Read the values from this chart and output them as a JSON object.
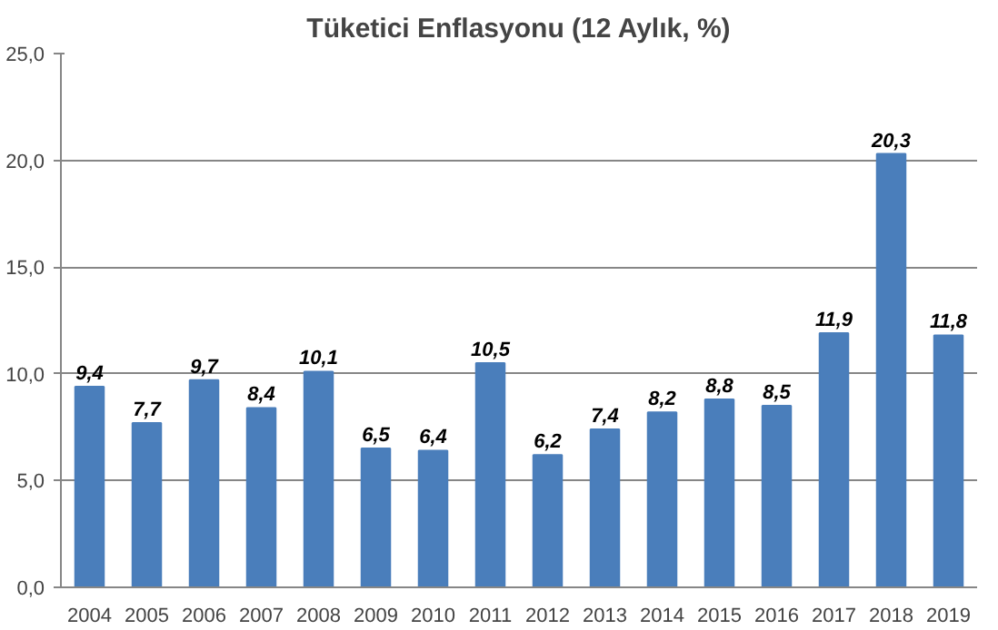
{
  "chart_data": {
    "type": "bar",
    "title": "Tüketici Enflasyonu (12 Aylık, %)",
    "categories": [
      "2004",
      "2005",
      "2006",
      "2007",
      "2008",
      "2009",
      "2010",
      "2011",
      "2012",
      "2013",
      "2014",
      "2015",
      "2016",
      "2017",
      "2018",
      "2019"
    ],
    "values": [
      9.4,
      7.7,
      9.7,
      8.4,
      10.1,
      6.5,
      6.4,
      10.5,
      6.2,
      7.4,
      8.2,
      8.8,
      8.5,
      11.9,
      20.3,
      11.8
    ],
    "value_labels": [
      "9,4",
      "7,7",
      "9,7",
      "8,4",
      "10,1",
      "6,5",
      "6,4",
      "10,5",
      "6,2",
      "7,4",
      "8,2",
      "8,8",
      "8,5",
      "11,9",
      "20,3",
      "11,8"
    ],
    "color": "#4a7ebb",
    "ylim": [
      0,
      25
    ],
    "yticks": [
      {
        "value": 0,
        "label": "0,0"
      },
      {
        "value": 5,
        "label": "5,0"
      },
      {
        "value": 10,
        "label": "10,0"
      },
      {
        "value": 15,
        "label": "15,0"
      },
      {
        "value": 20,
        "label": "20,0"
      },
      {
        "value": 25,
        "label": "25,0"
      }
    ],
    "grid": "y"
  }
}
